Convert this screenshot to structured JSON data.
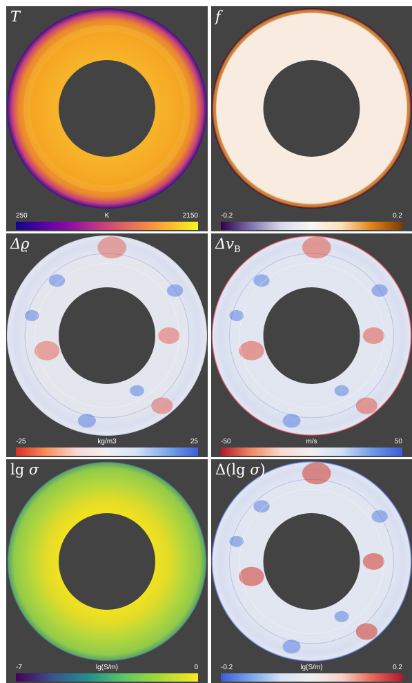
{
  "panels": [
    {
      "id": "T",
      "title": "T",
      "colorbar": {
        "min": "250",
        "unit": "K",
        "max": "2150",
        "colors": [
          "#0d0887",
          "#5302a3",
          "#8b0aa5",
          "#b83289",
          "#db5c68",
          "#f48849",
          "#febc2a",
          "#f0f921"
        ]
      },
      "ring": {
        "base": "#f5a623",
        "edge": "#3a0f8f",
        "mid": "#e8762e",
        "style": "temperature"
      }
    },
    {
      "id": "f",
      "title": "f",
      "colorbar": {
        "min": "-0.2",
        "unit": "",
        "max": "0.2",
        "colors": [
          "#2d004b",
          "#8073ac",
          "#d8daeb",
          "#f7f7f7",
          "#fee0b6",
          "#e08214",
          "#7f3b08"
        ]
      },
      "ring": {
        "base": "#f8ece0",
        "edge": "#b5590f",
        "mid": "#2d004b",
        "style": "melt"
      }
    },
    {
      "id": "drho",
      "title": "Δϱ",
      "colorbar": {
        "min": "-25",
        "unit": "kg/m3",
        "max": "25",
        "colors": [
          "#d73027",
          "#fc8d59",
          "#f7d9d5",
          "#f0f0f0",
          "#d5e1f5",
          "#7aa6e8",
          "#3a5fd9"
        ]
      },
      "ring": {
        "base": "#e4e6ee",
        "edge": "#c9d6f2",
        "mid": "#e46a5c",
        "style": "anomaly"
      }
    },
    {
      "id": "dvb",
      "title": "Δv_B",
      "colorbar": {
        "min": "-50",
        "unit": "m/s",
        "max": "50",
        "colors": [
          "#b2182b",
          "#ef8a62",
          "#f8d9cf",
          "#f0f0f0",
          "#d1def5",
          "#6f9be3",
          "#3b5bd6"
        ]
      },
      "ring": {
        "base": "#e2e6f0",
        "edge": "#c0142b",
        "mid": "#e25a4a",
        "style": "anomaly"
      }
    },
    {
      "id": "lgs",
      "title": "lg σ",
      "colorbar": {
        "min": "-7",
        "unit": "lg(S/m)",
        "max": "0",
        "colors": [
          "#440154",
          "#3b528b",
          "#21908d",
          "#5dc863",
          "#aadc32",
          "#fde725"
        ]
      },
      "ring": {
        "base": "#b3d73d",
        "edge": "#3b3060",
        "mid": "#f2e21f",
        "style": "conductivity"
      }
    },
    {
      "id": "dlgs",
      "title": "Δ(lg σ)",
      "colorbar": {
        "min": "-0.2",
        "unit": "lg(S/m)",
        "max": "0.2",
        "colors": [
          "#3b5bd6",
          "#7aa6e8",
          "#d5e1f5",
          "#f0f0f0",
          "#f7d0c8",
          "#e46a5c",
          "#b2182b"
        ]
      },
      "ring": {
        "base": "#e2e6f0",
        "edge": "#3b5bd6",
        "mid": "#d33a2e",
        "style": "anomaly"
      }
    }
  ]
}
